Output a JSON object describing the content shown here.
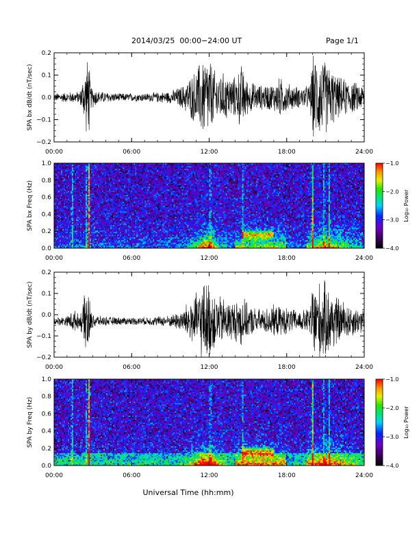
{
  "header": {
    "title": "2014/03/25  00:00−24:00 UT",
    "page": "Page 1/1"
  },
  "xlabel": "Universal Time (hh:mm)",
  "chart_data": [
    {
      "type": "line",
      "ylabel": "SPA bx dB/dt (nT/sec)",
      "xlim": [
        0,
        24
      ],
      "ylim": [
        -0.2,
        0.2
      ],
      "xticks": [
        "00:00",
        "06:00",
        "12:00",
        "18:00",
        "24:00"
      ],
      "yticks": [
        "−0.2",
        "−0.1",
        "0.0",
        "0.1",
        "0.2"
      ],
      "envelope": {
        "x": [
          0,
          1,
          2,
          2.6,
          2.7,
          2.8,
          3.5,
          5,
          7,
          9,
          10,
          10.5,
          11,
          11.5,
          11.8,
          12,
          12.5,
          13,
          14,
          14.5,
          15,
          16,
          17,
          17.5,
          18,
          19,
          19.8,
          20.0,
          20.5,
          21,
          21.5,
          22,
          23,
          24
        ],
        "y": [
          0.02,
          0.025,
          0.03,
          0.2,
          0.2,
          0.06,
          0.03,
          0.02,
          0.02,
          0.03,
          0.06,
          0.1,
          0.14,
          0.2,
          0.2,
          0.2,
          0.12,
          0.12,
          0.1,
          0.16,
          0.08,
          0.06,
          0.07,
          0.1,
          0.07,
          0.05,
          0.06,
          0.2,
          0.2,
          0.18,
          0.14,
          0.1,
          0.08,
          0.06
        ]
      }
    },
    {
      "type": "heatmap",
      "ylabel": "SPA bx Freq (Hz)",
      "xlim": [
        0,
        24
      ],
      "ylim": [
        0.0,
        1.0
      ],
      "xticks": [
        "00:00",
        "06:00",
        "12:00",
        "18:00",
        "24:00"
      ],
      "yticks": [
        "0.0",
        "0.2",
        "0.4",
        "0.6",
        "0.8",
        "1.0"
      ],
      "colorbar": {
        "label": "Log₁₀ Power",
        "range": [
          -4.0,
          -1.0
        ],
        "ticks": [
          "−1.0",
          "−2.0",
          "−3.0",
          "−4.0"
        ]
      }
    },
    {
      "type": "line",
      "ylabel": "SPA by dB/dt (nT/sec)",
      "xlim": [
        0,
        24
      ],
      "ylim": [
        -0.2,
        0.2
      ],
      "xticks": [
        "00:00",
        "06:00",
        "12:00",
        "18:00",
        "24:00"
      ],
      "yticks": [
        "−0.2",
        "−0.1",
        "0.0",
        "0.1",
        "0.2"
      ],
      "offset": -0.03,
      "envelope": {
        "x": [
          0,
          1,
          1.5,
          2,
          2.6,
          2.7,
          2.8,
          3.5,
          5,
          7,
          9,
          10,
          10.5,
          11,
          11.5,
          11.8,
          12,
          12.5,
          13,
          14,
          14.5,
          15,
          16,
          17,
          18,
          19,
          19.8,
          20.0,
          20.5,
          21,
          21.5,
          22,
          23,
          24
        ],
        "y": [
          0.02,
          0.025,
          0.06,
          0.03,
          0.2,
          0.2,
          0.05,
          0.025,
          0.02,
          0.02,
          0.03,
          0.06,
          0.12,
          0.14,
          0.2,
          0.2,
          0.2,
          0.14,
          0.12,
          0.1,
          0.14,
          0.08,
          0.06,
          0.08,
          0.07,
          0.05,
          0.07,
          0.2,
          0.2,
          0.2,
          0.16,
          0.12,
          0.08,
          0.06
        ]
      }
    },
    {
      "type": "heatmap",
      "ylabel": "SPA by Freq (Hz)",
      "xlim": [
        0,
        24
      ],
      "ylim": [
        0.0,
        1.0
      ],
      "xticks": [
        "00:00",
        "06:00",
        "12:00",
        "18:00",
        "24:00"
      ],
      "yticks": [
        "0.0",
        "0.2",
        "0.4",
        "0.6",
        "0.8",
        "1.0"
      ],
      "colorbar": {
        "label": "Log₁₀ Power",
        "range": [
          -4.0,
          -1.0
        ],
        "ticks": [
          "−1.0",
          "−2.0",
          "−3.0",
          "−4.0"
        ]
      }
    }
  ]
}
